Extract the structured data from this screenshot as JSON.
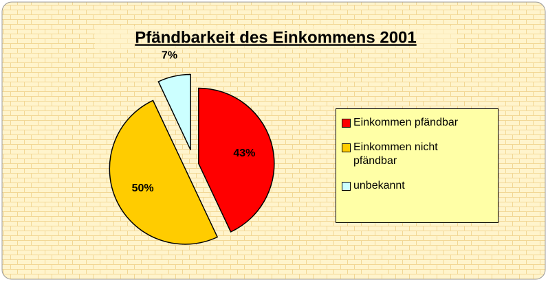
{
  "chart_data": {
    "type": "pie",
    "title": "Pfändbarkeit des Einkommens 2001",
    "categories": [
      "Einkommen pfändbar",
      "Einkommen nicht pfändbar",
      "unbekannt"
    ],
    "values": [
      43,
      50,
      7
    ],
    "value_labels": [
      "43%",
      "50%",
      "7%"
    ],
    "colors": [
      "#ff0000",
      "#ffcc00",
      "#ccffff"
    ],
    "legend": "right"
  }
}
